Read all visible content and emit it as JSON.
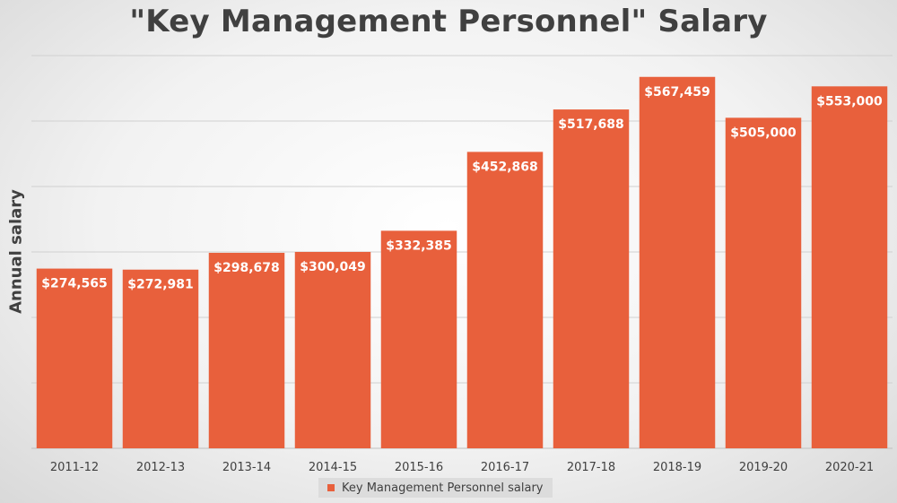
{
  "chart_data": {
    "type": "bar",
    "title": "\"Key Management Personnel\" Salary",
    "ylabel": "Annual salary",
    "xlabel": "",
    "categories": [
      "2011-12",
      "2012-13",
      "2013-14",
      "2014-15",
      "2015-16",
      "2016-17",
      "2017-18",
      "2018-19",
      "2019-20",
      "2020-21"
    ],
    "series": [
      {
        "name": "Key Management Personnel salary",
        "values": [
          274565,
          272981,
          298678,
          300049,
          332385,
          452868,
          517688,
          567459,
          505000,
          553000
        ],
        "labels": [
          "$274,565",
          "$272,981",
          "$298,678",
          "$300,049",
          "$332,385",
          "$452,868",
          "$517,688",
          "$567,459",
          "$505,000",
          "$553,000"
        ],
        "color": "#e8603c"
      }
    ],
    "ylim": [
      0,
      600000
    ],
    "grid": true,
    "legend": "bottom"
  }
}
